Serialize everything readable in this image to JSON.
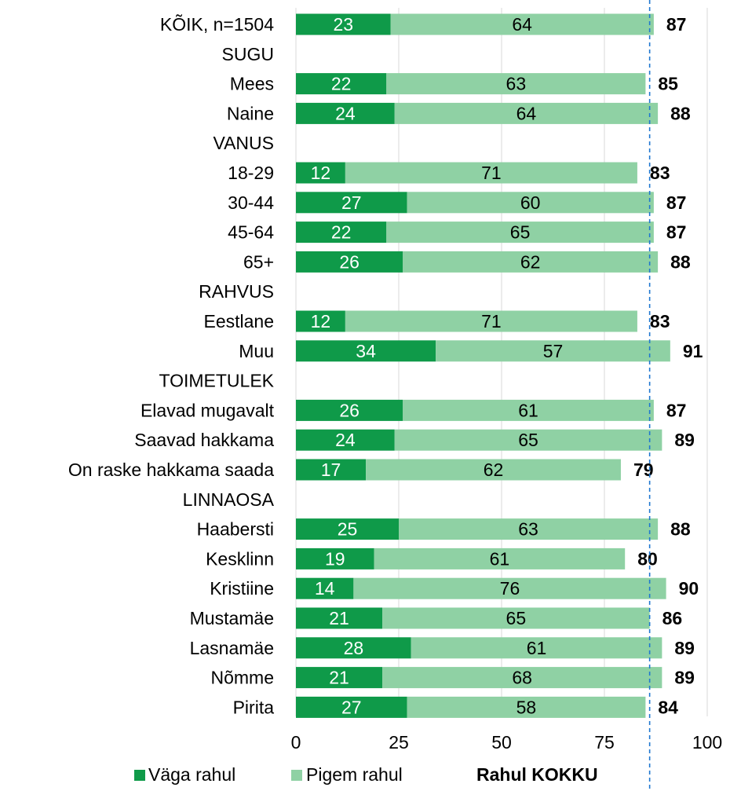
{
  "chart_data": {
    "type": "bar",
    "orientation": "horizontal",
    "stacked": true,
    "title": "",
    "xlabel": "",
    "ylabel": "",
    "xlim": [
      0,
      100
    ],
    "x_ticks": [
      "0",
      "25",
      "50",
      "75",
      "100"
    ],
    "grid": "vertical",
    "reference_line": {
      "value": 86,
      "style": "dashed",
      "color": "#1f77d0"
    },
    "legend_placement": "bottom",
    "colors": {
      "dark": "#0f9a49",
      "light": "#8fd1a4",
      "reference": "#1f77d0"
    },
    "legend": [
      {
        "label": "Väga rahul",
        "color": "#0f9a49"
      },
      {
        "label": "Pigem rahul",
        "color": "#8fd1a4"
      },
      {
        "label": "Rahul KOKKU",
        "color": ""
      }
    ],
    "rows": [
      {
        "label": "KÕIK, n=1504",
        "header": false,
        "vaga": 23,
        "pigem": 64,
        "total": 87
      },
      {
        "label": "SUGU",
        "header": true
      },
      {
        "label": "Mees",
        "header": false,
        "vaga": 22,
        "pigem": 63,
        "total": 85
      },
      {
        "label": "Naine",
        "header": false,
        "vaga": 24,
        "pigem": 64,
        "total": 88
      },
      {
        "label": "VANUS",
        "header": true
      },
      {
        "label": "18-29",
        "header": false,
        "vaga": 12,
        "pigem": 71,
        "total": 83
      },
      {
        "label": "30-44",
        "header": false,
        "vaga": 27,
        "pigem": 60,
        "total": 87
      },
      {
        "label": "45-64",
        "header": false,
        "vaga": 22,
        "pigem": 65,
        "total": 87
      },
      {
        "label": "65+",
        "header": false,
        "vaga": 26,
        "pigem": 62,
        "total": 88
      },
      {
        "label": "RAHVUS",
        "header": true
      },
      {
        "label": "Eestlane",
        "header": false,
        "vaga": 12,
        "pigem": 71,
        "total": 83
      },
      {
        "label": "Muu",
        "header": false,
        "vaga": 34,
        "pigem": 57,
        "total": 91
      },
      {
        "label": "TOIMETULEK",
        "header": true
      },
      {
        "label": "Elavad mugavalt",
        "header": false,
        "vaga": 26,
        "pigem": 61,
        "total": 87
      },
      {
        "label": "Saavad hakkama",
        "header": false,
        "vaga": 24,
        "pigem": 65,
        "total": 89
      },
      {
        "label": "On raske hakkama saada",
        "header": false,
        "vaga": 17,
        "pigem": 62,
        "total": 79
      },
      {
        "label": "LINNAOSA",
        "header": true
      },
      {
        "label": "Haabersti",
        "header": false,
        "vaga": 25,
        "pigem": 63,
        "total": 88
      },
      {
        "label": "Kesklinn",
        "header": false,
        "vaga": 19,
        "pigem": 61,
        "total": 80
      },
      {
        "label": "Kristiine",
        "header": false,
        "vaga": 14,
        "pigem": 76,
        "total": 90
      },
      {
        "label": "Mustamäe",
        "header": false,
        "vaga": 21,
        "pigem": 65,
        "total": 86
      },
      {
        "label": "Lasnamäe",
        "header": false,
        "vaga": 28,
        "pigem": 61,
        "total": 89
      },
      {
        "label": "Nõmme",
        "header": false,
        "vaga": 21,
        "pigem": 68,
        "total": 89
      },
      {
        "label": "Pirita",
        "header": false,
        "vaga": 27,
        "pigem": 58,
        "total": 84
      }
    ]
  }
}
